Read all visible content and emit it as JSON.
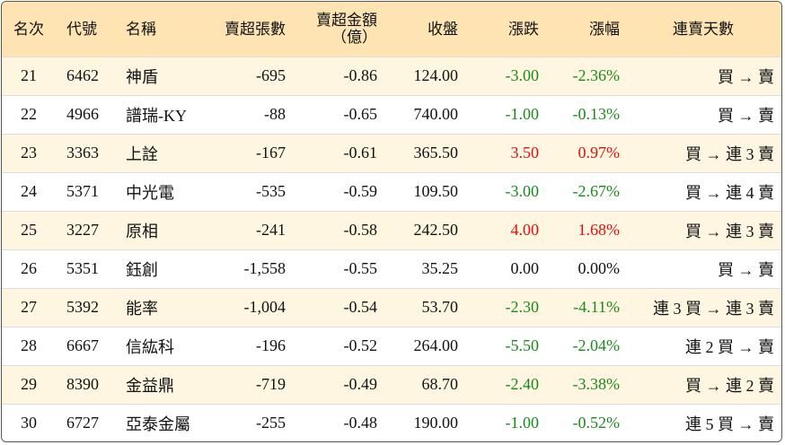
{
  "table": {
    "header": [
      "名次",
      "代號",
      "名稱",
      "賣超張數",
      [
        "賣超金額",
        "（億）"
      ],
      "收盤",
      "漲跌",
      "漲幅",
      "連賣天數"
    ],
    "rows": [
      [
        "21",
        "6462",
        "神盾",
        "-695",
        "-0.86",
        "124.00",
        "-3.00",
        "-2.36%",
        "買 → 賣"
      ],
      [
        "22",
        "4966",
        "譜瑞-KY",
        "-88",
        "-0.65",
        "740.00",
        "-1.00",
        "-0.13%",
        "買 → 賣"
      ],
      [
        "23",
        "3363",
        "上詮",
        "-167",
        "-0.61",
        "365.50",
        "3.50",
        "0.97%",
        "買 → 連 3 賣"
      ],
      [
        "24",
        "5371",
        "中光電",
        "-535",
        "-0.59",
        "109.50",
        "-3.00",
        "-2.67%",
        "買 → 連 4 賣"
      ],
      [
        "25",
        "3227",
        "原相",
        "-241",
        "-0.58",
        "242.50",
        "4.00",
        "1.68%",
        "買 → 連 3 賣"
      ],
      [
        "26",
        "5351",
        "鈺創",
        "-1,558",
        "-0.55",
        "35.25",
        "0.00",
        "0.00%",
        "買 → 賣"
      ],
      [
        "27",
        "5392",
        "能率",
        "-1,004",
        "-0.54",
        "53.70",
        "-2.30",
        "-4.11%",
        "連 3 買 → 連 3 賣"
      ],
      [
        "28",
        "6667",
        "信紘科",
        "-196",
        "-0.52",
        "264.00",
        "-5.50",
        "-2.04%",
        "連 2 買 → 賣"
      ],
      [
        "29",
        "8390",
        "金益鼎",
        "-719",
        "-0.49",
        "68.70",
        "-2.40",
        "-3.38%",
        "買 → 連 2 賣"
      ],
      [
        "30",
        "6727",
        "亞泰金屬",
        "-255",
        "-0.48",
        "190.00",
        "-1.00",
        "-0.52%",
        "連 5 買 → 賣"
      ]
    ]
  }
}
